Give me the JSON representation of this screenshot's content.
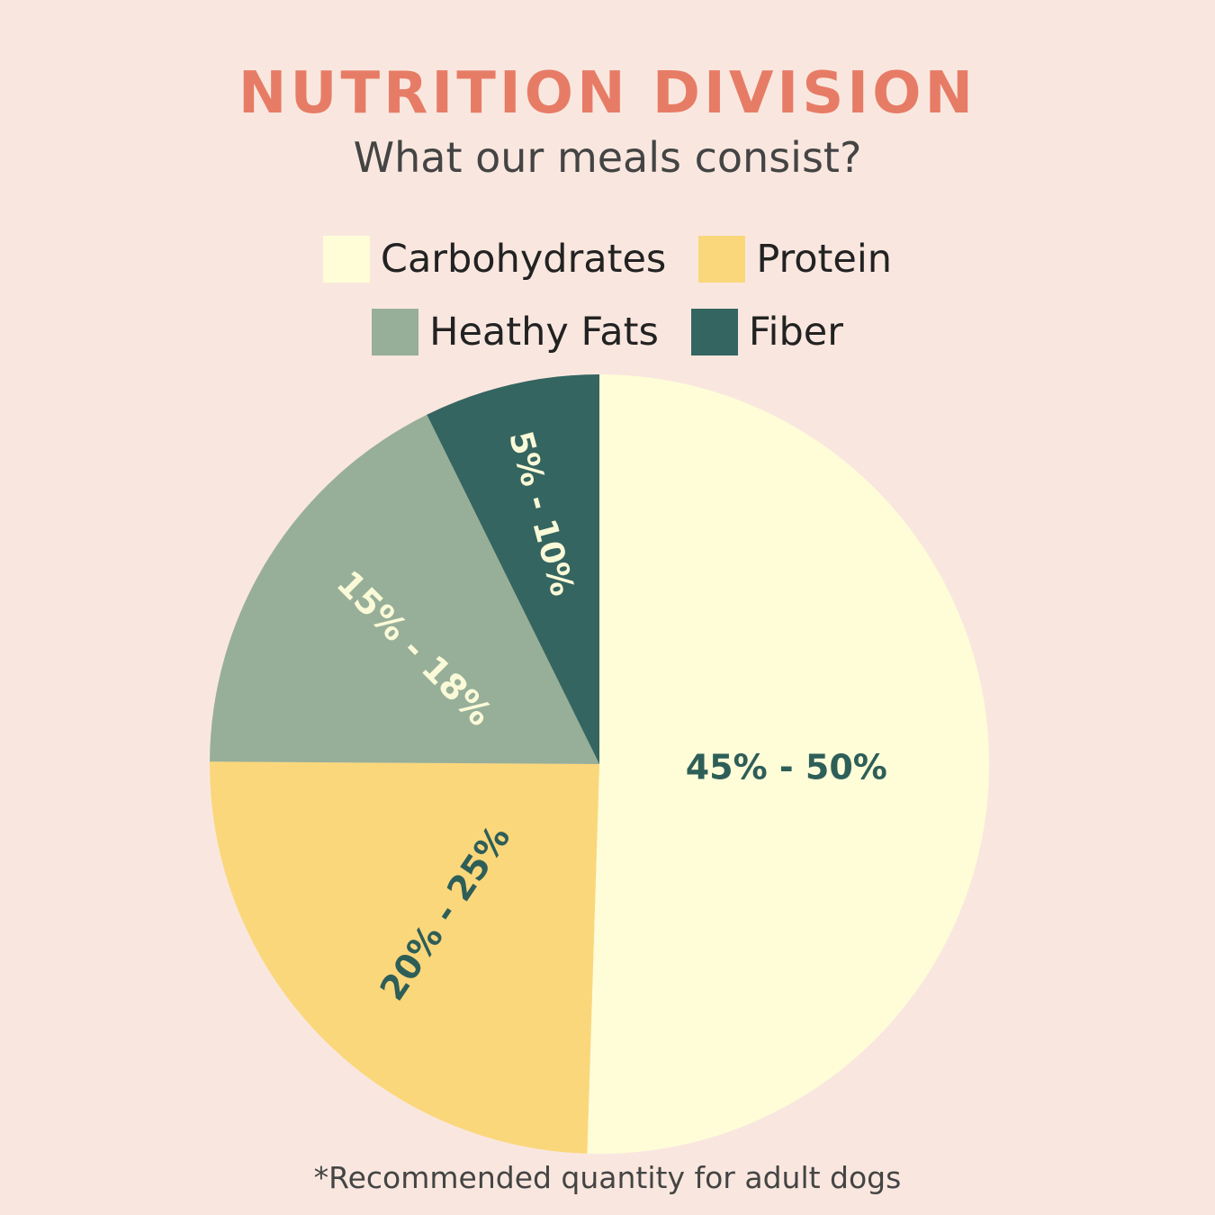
{
  "colors": {
    "background": "#f9e7df",
    "title": "#e77c66",
    "dark_label": "#2e5e58",
    "light_label": "#fbfad8"
  },
  "chart_data": {
    "type": "pie",
    "title": "NUTRITION DIVISION",
    "subtitle": "What our meals consist?",
    "legend_placement": "top",
    "legend": [
      "Carbohydrates",
      "Protein",
      "Heathy Fats",
      "Fiber"
    ],
    "slices": [
      {
        "name": "Carbohydrates",
        "label": "45% - 50%",
        "value": 50.5,
        "color": "#fefdd8"
      },
      {
        "name": "Protein",
        "label": "20% - 25%",
        "value": 24.6,
        "color": "#fbd77b"
      },
      {
        "name": "Heathy Fats",
        "label": "15% - 18%",
        "value": 17.6,
        "color": "#97af98"
      },
      {
        "name": "Fiber",
        "label": "5% - 10%",
        "value": 7.3,
        "color": "#356560"
      }
    ],
    "footnote": "*Recommended quantity for adult dogs"
  }
}
